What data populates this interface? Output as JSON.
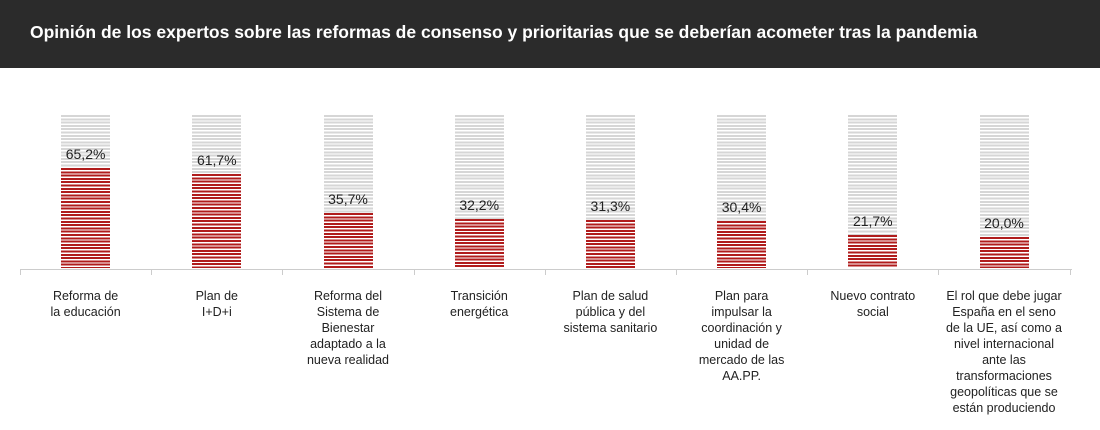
{
  "header": {
    "title": "Opinión de los expertos sobre las reformas de consenso y prioritarias que se deberían acometer tras la pandemia"
  },
  "chart_data": {
    "type": "bar",
    "title": "Opinión de los expertos sobre las reformas de consenso y prioritarias que se deberían acometer tras la pandemia",
    "categories": [
      [
        "Reforma de",
        "la educación"
      ],
      [
        "Plan de",
        "I+D+i"
      ],
      [
        "Reforma del",
        "Sistema de",
        "Bienestar",
        "adaptado a la",
        "nueva realidad"
      ],
      [
        "Transición",
        "energética"
      ],
      [
        "Plan de salud",
        "pública y del",
        "sistema sanitario"
      ],
      [
        "Plan para",
        "impulsar la",
        "coordinación y",
        "unidad de",
        "mercado de las",
        "AA.PP."
      ],
      [
        "Nuevo contrato",
        "social"
      ],
      [
        "El rol que debe jugar",
        "España en el seno",
        "de la UE, así como a",
        "nivel internacional",
        "ante las",
        "transformaciones",
        "geopolíticas que se",
        "están produciendo"
      ]
    ],
    "values": [
      65.2,
      61.7,
      35.7,
      32.2,
      31.3,
      30.4,
      21.7,
      20.0
    ],
    "labels": [
      "65,2%",
      "61,7%",
      "35,7%",
      "32,2%",
      "31,3%",
      "30,4%",
      "21,7%",
      "20,0%"
    ],
    "ylim": [
      0,
      100
    ],
    "xlabel": "",
    "ylabel": "",
    "grid": false,
    "colors": {
      "value": "#b01c1c",
      "background": "#d6d6d6"
    }
  }
}
